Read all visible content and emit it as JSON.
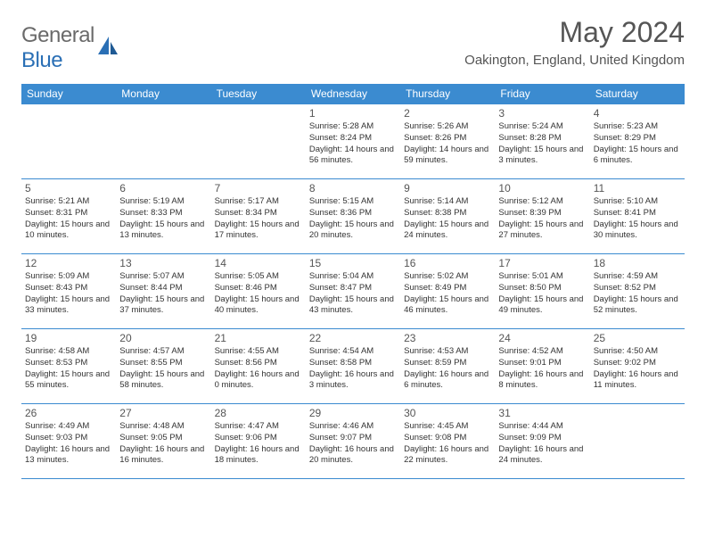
{
  "brand": {
    "part1": "General",
    "part2": "Blue"
  },
  "title": "May 2024",
  "location": "Oakington, England, United Kingdom",
  "daysOfWeek": [
    "Sunday",
    "Monday",
    "Tuesday",
    "Wednesday",
    "Thursday",
    "Friday",
    "Saturday"
  ],
  "headerBg": "#3b8bd0",
  "rows": [
    [
      null,
      null,
      null,
      {
        "n": "1",
        "sr": "5:28 AM",
        "ss": "8:24 PM",
        "dl": "14 hours and 56 minutes."
      },
      {
        "n": "2",
        "sr": "5:26 AM",
        "ss": "8:26 PM",
        "dl": "14 hours and 59 minutes."
      },
      {
        "n": "3",
        "sr": "5:24 AM",
        "ss": "8:28 PM",
        "dl": "15 hours and 3 minutes."
      },
      {
        "n": "4",
        "sr": "5:23 AM",
        "ss": "8:29 PM",
        "dl": "15 hours and 6 minutes."
      }
    ],
    [
      {
        "n": "5",
        "sr": "5:21 AM",
        "ss": "8:31 PM",
        "dl": "15 hours and 10 minutes."
      },
      {
        "n": "6",
        "sr": "5:19 AM",
        "ss": "8:33 PM",
        "dl": "15 hours and 13 minutes."
      },
      {
        "n": "7",
        "sr": "5:17 AM",
        "ss": "8:34 PM",
        "dl": "15 hours and 17 minutes."
      },
      {
        "n": "8",
        "sr": "5:15 AM",
        "ss": "8:36 PM",
        "dl": "15 hours and 20 minutes."
      },
      {
        "n": "9",
        "sr": "5:14 AM",
        "ss": "8:38 PM",
        "dl": "15 hours and 24 minutes."
      },
      {
        "n": "10",
        "sr": "5:12 AM",
        "ss": "8:39 PM",
        "dl": "15 hours and 27 minutes."
      },
      {
        "n": "11",
        "sr": "5:10 AM",
        "ss": "8:41 PM",
        "dl": "15 hours and 30 minutes."
      }
    ],
    [
      {
        "n": "12",
        "sr": "5:09 AM",
        "ss": "8:43 PM",
        "dl": "15 hours and 33 minutes."
      },
      {
        "n": "13",
        "sr": "5:07 AM",
        "ss": "8:44 PM",
        "dl": "15 hours and 37 minutes."
      },
      {
        "n": "14",
        "sr": "5:05 AM",
        "ss": "8:46 PM",
        "dl": "15 hours and 40 minutes."
      },
      {
        "n": "15",
        "sr": "5:04 AM",
        "ss": "8:47 PM",
        "dl": "15 hours and 43 minutes."
      },
      {
        "n": "16",
        "sr": "5:02 AM",
        "ss": "8:49 PM",
        "dl": "15 hours and 46 minutes."
      },
      {
        "n": "17",
        "sr": "5:01 AM",
        "ss": "8:50 PM",
        "dl": "15 hours and 49 minutes."
      },
      {
        "n": "18",
        "sr": "4:59 AM",
        "ss": "8:52 PM",
        "dl": "15 hours and 52 minutes."
      }
    ],
    [
      {
        "n": "19",
        "sr": "4:58 AM",
        "ss": "8:53 PM",
        "dl": "15 hours and 55 minutes."
      },
      {
        "n": "20",
        "sr": "4:57 AM",
        "ss": "8:55 PM",
        "dl": "15 hours and 58 minutes."
      },
      {
        "n": "21",
        "sr": "4:55 AM",
        "ss": "8:56 PM",
        "dl": "16 hours and 0 minutes."
      },
      {
        "n": "22",
        "sr": "4:54 AM",
        "ss": "8:58 PM",
        "dl": "16 hours and 3 minutes."
      },
      {
        "n": "23",
        "sr": "4:53 AM",
        "ss": "8:59 PM",
        "dl": "16 hours and 6 minutes."
      },
      {
        "n": "24",
        "sr": "4:52 AM",
        "ss": "9:01 PM",
        "dl": "16 hours and 8 minutes."
      },
      {
        "n": "25",
        "sr": "4:50 AM",
        "ss": "9:02 PM",
        "dl": "16 hours and 11 minutes."
      }
    ],
    [
      {
        "n": "26",
        "sr": "4:49 AM",
        "ss": "9:03 PM",
        "dl": "16 hours and 13 minutes."
      },
      {
        "n": "27",
        "sr": "4:48 AM",
        "ss": "9:05 PM",
        "dl": "16 hours and 16 minutes."
      },
      {
        "n": "28",
        "sr": "4:47 AM",
        "ss": "9:06 PM",
        "dl": "16 hours and 18 minutes."
      },
      {
        "n": "29",
        "sr": "4:46 AM",
        "ss": "9:07 PM",
        "dl": "16 hours and 20 minutes."
      },
      {
        "n": "30",
        "sr": "4:45 AM",
        "ss": "9:08 PM",
        "dl": "16 hours and 22 minutes."
      },
      {
        "n": "31",
        "sr": "4:44 AM",
        "ss": "9:09 PM",
        "dl": "16 hours and 24 minutes."
      },
      null
    ]
  ],
  "labels": {
    "sunrise": "Sunrise: ",
    "sunset": "Sunset: ",
    "daylight": "Daylight: "
  }
}
